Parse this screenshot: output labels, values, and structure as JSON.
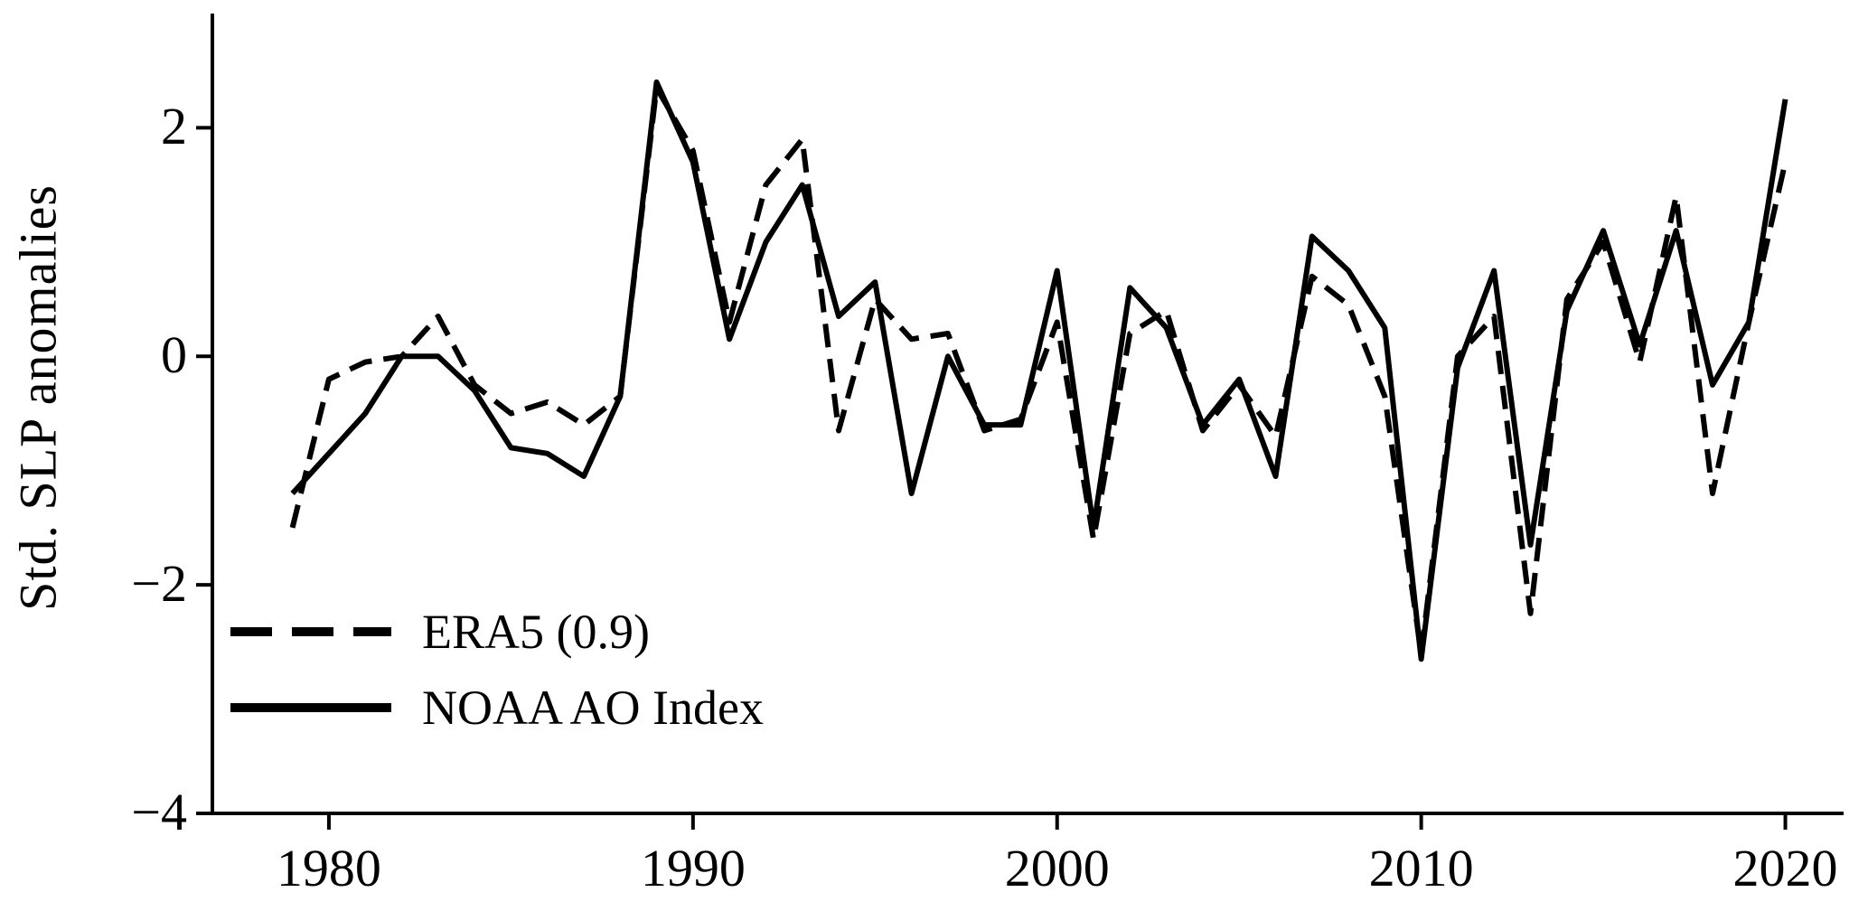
{
  "figure": {
    "background": "#ffffff",
    "line_color": "#000000"
  },
  "chart_data": {
    "type": "line",
    "title": "",
    "xlabel": "",
    "ylabel": "Std. SLP anomalies",
    "xlim": [
      1976.8,
      2021.6
    ],
    "ylim": [
      -4,
      3.0
    ],
    "xticks": [
      1980,
      1990,
      2000,
      2010,
      2020
    ],
    "yticks": [
      2,
      0,
      -2,
      -4
    ],
    "grid": false,
    "legend_position": "lower-left",
    "x": [
      1979,
      1980,
      1981,
      1982,
      1983,
      1984,
      1985,
      1986,
      1987,
      1988,
      1989,
      1990,
      1991,
      1992,
      1993,
      1994,
      1995,
      1996,
      1997,
      1998,
      1999,
      2000,
      2001,
      2002,
      2003,
      2004,
      2005,
      2006,
      2007,
      2008,
      2009,
      2010,
      2011,
      2012,
      2013,
      2014,
      2015,
      2016,
      2017,
      2018,
      2019,
      2020
    ],
    "series": [
      {
        "id": "era5-line",
        "name": "ERA5 (0.9)",
        "style": "dashed",
        "color": "#000000",
        "values": [
          -1.5,
          -0.2,
          -0.05,
          0.0,
          0.35,
          -0.25,
          -0.5,
          -0.4,
          -0.6,
          -0.35,
          2.35,
          1.8,
          0.3,
          1.5,
          1.9,
          -0.65,
          0.5,
          0.15,
          0.2,
          -0.65,
          -0.55,
          0.3,
          -1.6,
          0.2,
          0.4,
          -0.65,
          -0.25,
          -0.7,
          0.7,
          0.45,
          -0.35,
          -2.6,
          0.0,
          0.35,
          -2.25,
          0.5,
          1.0,
          -0.05,
          1.4,
          -1.2,
          0.3,
          1.7
        ]
      },
      {
        "id": "noaa-line",
        "name": "NOAA AO Index",
        "style": "solid",
        "color": "#000000",
        "values": [
          -1.2,
          -0.85,
          -0.5,
          0.0,
          0.0,
          -0.3,
          -0.8,
          -0.85,
          -1.05,
          -0.35,
          2.4,
          1.7,
          0.15,
          1.0,
          1.5,
          0.35,
          0.65,
          -1.2,
          0.0,
          -0.6,
          -0.6,
          0.75,
          -1.5,
          0.6,
          0.25,
          -0.6,
          -0.2,
          -1.05,
          1.05,
          0.75,
          0.25,
          -2.65,
          -0.1,
          0.75,
          -1.65,
          0.4,
          1.1,
          0.1,
          1.1,
          -0.25,
          0.3,
          2.25
        ]
      }
    ]
  }
}
